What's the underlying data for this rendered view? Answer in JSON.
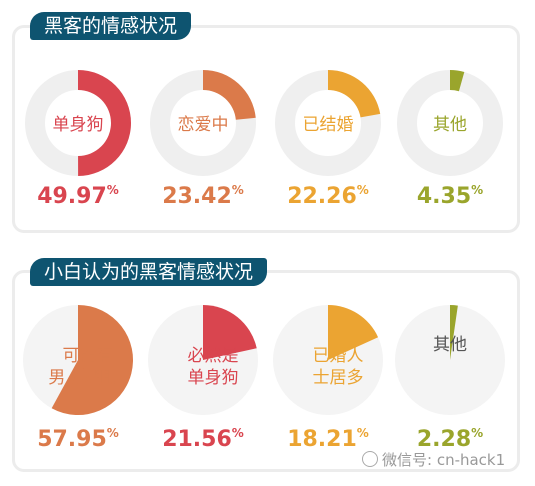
{
  "chart_data": [
    {
      "type": "pie",
      "variant": "donut",
      "title": "黑客的情感状况",
      "slices": [
        {
          "label": [
            "单身狗"
          ],
          "value": 49.97,
          "value_text": "49.97",
          "unit": "%",
          "color": "#d9454f"
        },
        {
          "label": [
            "恋爱中"
          ],
          "value": 23.42,
          "value_text": "23.42",
          "unit": "%",
          "color": "#db7a4a"
        },
        {
          "label": [
            "已结婚"
          ],
          "value": 22.26,
          "value_text": "22.26",
          "unit": "%",
          "color": "#eba432"
        },
        {
          "label": [
            "其他"
          ],
          "value": 4.35,
          "value_text": "4.35",
          "unit": "%",
          "color": "#9aa52c"
        }
      ]
    },
    {
      "type": "pie",
      "variant": "radial-sector",
      "title": "小白认为的黑客情感状况",
      "slices": [
        {
          "label": [
            "可能有",
            "男 /女朋友"
          ],
          "value": 57.95,
          "value_text": "57.95",
          "unit": "%",
          "color": "#db7a4a"
        },
        {
          "label": [
            "必然是",
            "单身狗"
          ],
          "value": 21.56,
          "value_text": "21.56",
          "unit": "%",
          "color": "#d9454f"
        },
        {
          "label": [
            "已婚人",
            "士居多"
          ],
          "value": 18.21,
          "value_text": "18.21",
          "unit": "%",
          "color": "#eba432"
        },
        {
          "label": [
            "其他"
          ],
          "value": 2.28,
          "value_text": "2.28",
          "unit": "%",
          "color": "#9aa52c"
        }
      ]
    }
  ],
  "watermark": "微信号: cn-hack1",
  "colors": {
    "header_bg": "#0e5470",
    "track": "#efefef",
    "panel_border": "#ececec"
  }
}
